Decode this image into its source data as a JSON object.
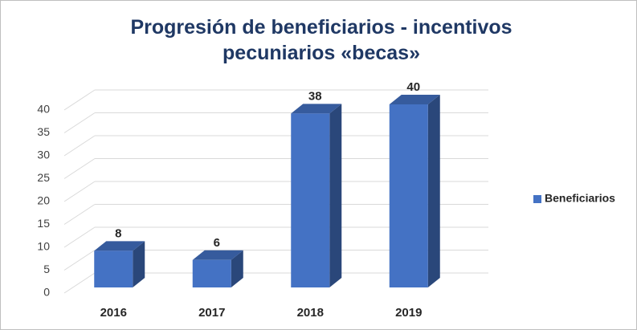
{
  "chart_data": {
    "type": "bar3d",
    "title": "Progresión de beneficiarios - incentivos pecuniarios «becas»",
    "categories": [
      "2016",
      "2017",
      "2018",
      "2019"
    ],
    "series": [
      {
        "name": "Beneficiarios",
        "color": "#4472c4",
        "values": [
          8,
          6,
          38,
          40
        ]
      }
    ],
    "ylim": [
      0,
      40
    ],
    "yticks": [
      0,
      5,
      10,
      15,
      20,
      25,
      30,
      35,
      40
    ],
    "grid": true,
    "legend": "right"
  }
}
